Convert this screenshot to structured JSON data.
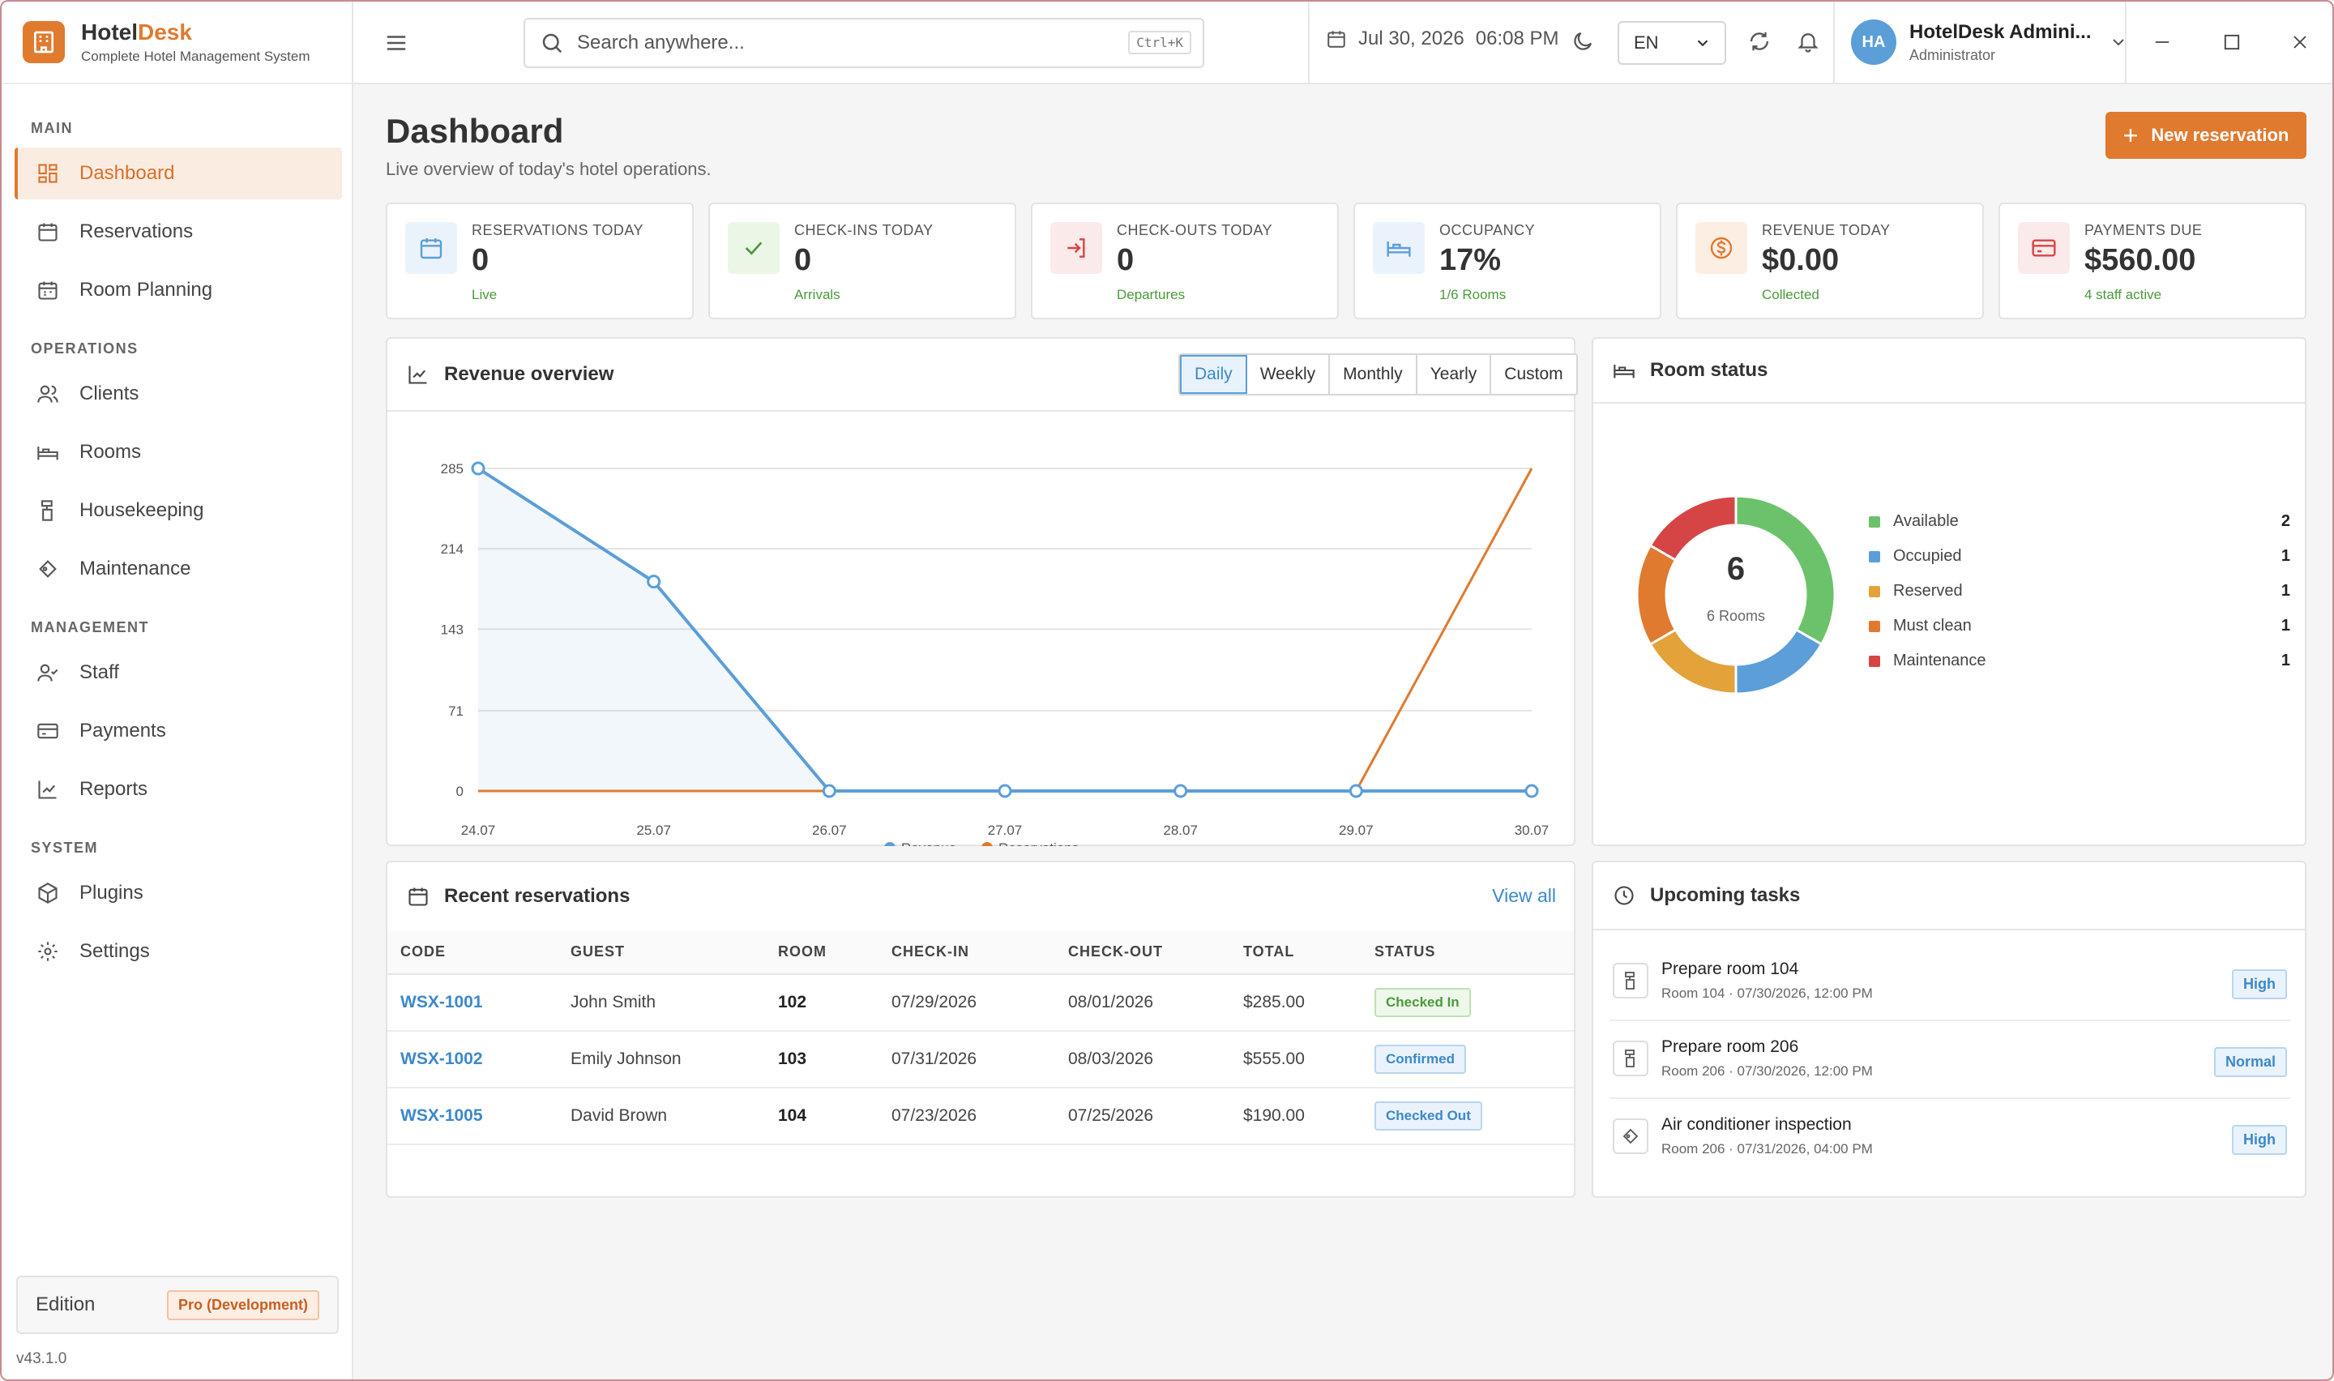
{
  "brand": {
    "name_main": "Hotel",
    "name_accent": "Desk",
    "subtitle": "Complete Hotel Management System"
  },
  "sidebar": {
    "sections": [
      "MAIN",
      "OPERATIONS",
      "MANAGEMENT",
      "SYSTEM"
    ],
    "items": [
      {
        "label": "Dashboard",
        "icon": "dashboard-icon",
        "active": true
      },
      {
        "label": "Reservations",
        "icon": "calendar-icon"
      },
      {
        "label": "Room Planning",
        "icon": "calendar-grid-icon"
      },
      {
        "label": "Clients",
        "icon": "users-icon"
      },
      {
        "label": "Rooms",
        "icon": "bed-icon"
      },
      {
        "label": "Housekeeping",
        "icon": "housekeeping-icon"
      },
      {
        "label": "Maintenance",
        "icon": "wrench-icon"
      },
      {
        "label": "Staff",
        "icon": "staff-icon"
      },
      {
        "label": "Payments",
        "icon": "credit-card-icon"
      },
      {
        "label": "Reports",
        "icon": "line-chart-icon"
      },
      {
        "label": "Plugins",
        "icon": "package-icon"
      },
      {
        "label": "Settings",
        "icon": "gear-icon"
      }
    ],
    "edition_label": "Edition",
    "edition_value": "Pro (Development)",
    "version": "v43.1.0"
  },
  "topbar": {
    "search_placeholder": "Search anywhere...",
    "search_shortcut": "Ctrl+K",
    "date": "Jul 30, 2026",
    "time": "06:08 PM",
    "language": "EN",
    "user_initials": "HA",
    "user_name": "HotelDesk Admini...",
    "user_role": "Administrator"
  },
  "page": {
    "title": "Dashboard",
    "subtitle": "Live overview of today's hotel operations.",
    "new_button": "New reservation"
  },
  "stats": [
    {
      "label": "RESERVATIONS TODAY",
      "value": "0",
      "sub": "Live",
      "icon": "calendar-icon",
      "color": "#5b9ed8",
      "bg": "#eaf3fb"
    },
    {
      "label": "CHECK-INS TODAY",
      "value": "0",
      "sub": "Arrivals",
      "icon": "check-icon",
      "color": "#4a9a3a",
      "bg": "#eaf6e6"
    },
    {
      "label": "CHECK-OUTS TODAY",
      "value": "0",
      "sub": "Departures",
      "icon": "logout-icon",
      "color": "#d64545",
      "bg": "#fbeaea"
    },
    {
      "label": "OCCUPANCY",
      "value": "17%",
      "sub": "1/6 Rooms",
      "icon": "bed-icon",
      "color": "#5b9ed8",
      "bg": "#eaf3fb"
    },
    {
      "label": "REVENUE TODAY",
      "value": "$0.00",
      "sub": "Collected",
      "icon": "dollar-icon",
      "color": "#e07a2f",
      "bg": "#fdeee4"
    },
    {
      "label": "PAYMENTS DUE",
      "value": "$560.00",
      "sub": "4 staff active",
      "icon": "credit-card-icon",
      "color": "#d64545",
      "bg": "#fbeaea"
    }
  ],
  "revenue": {
    "title": "Revenue overview",
    "ranges": [
      "Daily",
      "Weekly",
      "Monthly",
      "Yearly",
      "Custom"
    ],
    "active_range": "Daily"
  },
  "chart_data": {
    "type": "line",
    "x": [
      "24.07",
      "25.07",
      "26.07",
      "27.07",
      "28.07",
      "29.07",
      "30.07"
    ],
    "yticks": [
      "285",
      "214",
      "143",
      "71",
      "0"
    ],
    "ylim": [
      0,
      285
    ],
    "series": [
      {
        "name": "Revenue",
        "color": "#5b9ed8",
        "values": [
          285,
          185,
          0,
          0,
          0,
          0,
          0
        ],
        "fill": true
      },
      {
        "name": "Reservations",
        "color": "#e07a2f",
        "values": [
          0,
          0,
          0,
          0,
          0,
          0,
          285
        ]
      }
    ],
    "grid": true,
    "legend": "bottom"
  },
  "room_status": {
    "title": "Room status",
    "total": "6",
    "total_label": "6 Rooms",
    "items": [
      {
        "label": "Available",
        "count": "2",
        "color": "#6cc26a"
      },
      {
        "label": "Occupied",
        "count": "1",
        "color": "#5b9ed8"
      },
      {
        "label": "Reserved",
        "count": "1",
        "color": "#e3a23a"
      },
      {
        "label": "Must clean",
        "count": "1",
        "color": "#e07a2f"
      },
      {
        "label": "Maintenance",
        "count": "1",
        "color": "#d64545"
      }
    ]
  },
  "reservations": {
    "title": "Recent reservations",
    "view_all": "View all",
    "columns": [
      "CODE",
      "GUEST",
      "ROOM",
      "CHECK-IN",
      "CHECK-OUT",
      "TOTAL",
      "STATUS"
    ],
    "rows": [
      {
        "code": "WSX-1001",
        "guest": "John Smith",
        "room": "102",
        "checkin": "07/29/2026",
        "checkout": "08/01/2026",
        "total": "$285.00",
        "status": "Checked In",
        "tone": "green"
      },
      {
        "code": "WSX-1002",
        "guest": "Emily Johnson",
        "room": "103",
        "checkin": "07/31/2026",
        "checkout": "08/03/2026",
        "total": "$555.00",
        "status": "Confirmed",
        "tone": "blue"
      },
      {
        "code": "WSX-1005",
        "guest": "David Brown",
        "room": "104",
        "checkin": "07/23/2026",
        "checkout": "07/25/2026",
        "total": "$190.00",
        "status": "Checked Out",
        "tone": "blue"
      }
    ]
  },
  "tasks": {
    "title": "Upcoming tasks",
    "items": [
      {
        "title": "Prepare room 104",
        "sub": "Room 104 · 07/30/2026, 12:00 PM",
        "priority": "High",
        "icon": "housekeeping-icon"
      },
      {
        "title": "Prepare room 206",
        "sub": "Room 206 · 07/30/2026, 12:00 PM",
        "priority": "Normal",
        "icon": "housekeeping-icon"
      },
      {
        "title": "Air conditioner inspection",
        "sub": "Room 206 · 07/31/2026, 04:00 PM",
        "priority": "High",
        "icon": "wrench-icon"
      }
    ]
  }
}
